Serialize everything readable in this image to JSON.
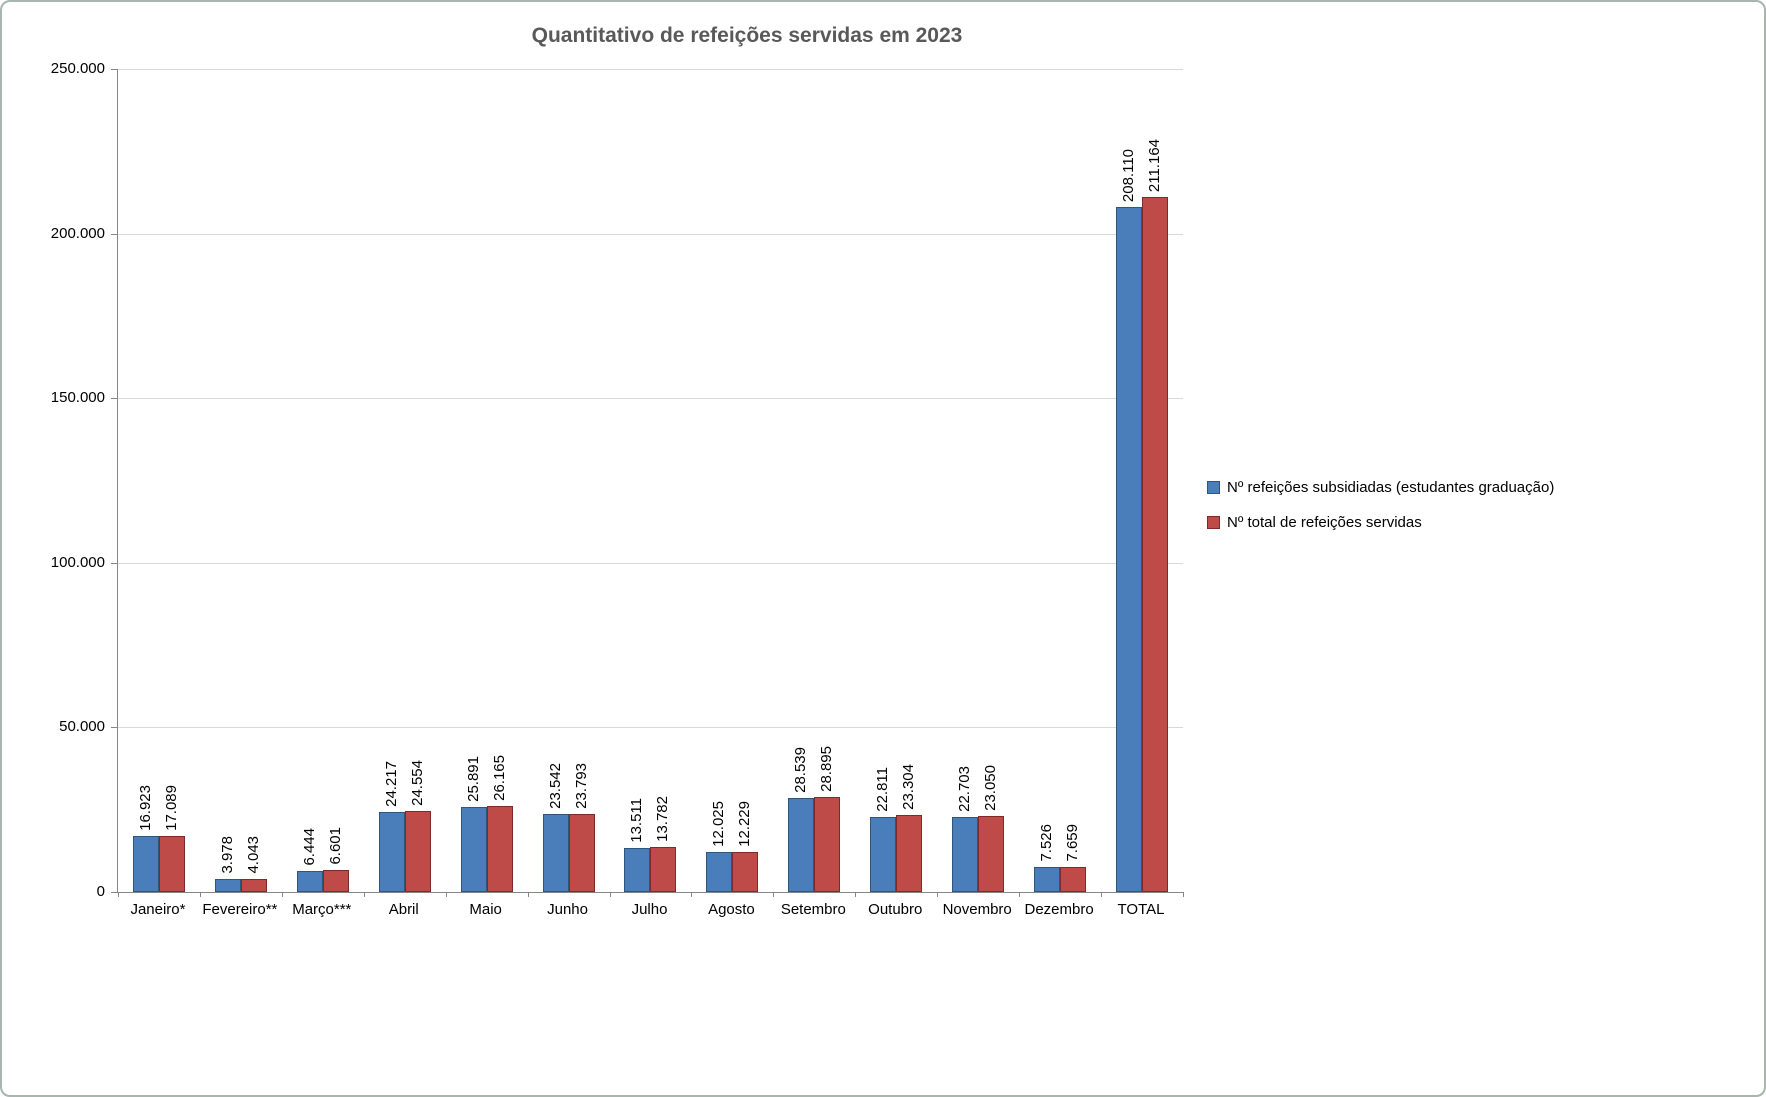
{
  "chart_data": {
    "type": "bar",
    "title": "Quantitativo de refeições servidas em 2023",
    "categories": [
      "Janeiro*",
      "Fevereiro**",
      "Março***",
      "Abril",
      "Maio",
      "Junho",
      "Julho",
      "Agosto",
      "Setembro",
      "Outubro",
      "Novembro",
      "Dezembro",
      "TOTAL"
    ],
    "series": [
      {
        "name": "Nº refeições subsidiadas (estudantes graduação)",
        "color": "#4A7EBB",
        "border_color": "#2F5578",
        "values": [
          16923,
          3978,
          6444,
          24217,
          25891,
          23542,
          13511,
          12025,
          28539,
          22811,
          22703,
          7526,
          208110
        ],
        "labels": [
          "16.923",
          "3.978",
          "6.444",
          "24.217",
          "25.891",
          "23.542",
          "13.511",
          "12.025",
          "28.539",
          "22.811",
          "22.703",
          "7.526",
          "208.110"
        ]
      },
      {
        "name": "Nº total de refeições servidas",
        "color": "#BE4B48",
        "border_color": "#7D2B28",
        "values": [
          17089,
          4043,
          6601,
          24554,
          26165,
          23793,
          13782,
          12229,
          28895,
          23304,
          23050,
          7659,
          211164
        ],
        "labels": [
          "17.089",
          "4.043",
          "6.601",
          "24.554",
          "26.165",
          "23.793",
          "13.782",
          "12.229",
          "28.895",
          "23.304",
          "23.050",
          "7.659",
          "211.164"
        ]
      }
    ],
    "ylim": [
      0,
      250000
    ],
    "ytick_step": 50000,
    "ytick_labels": [
      "0",
      "50.000",
      "100.000",
      "150.000",
      "200.000",
      "250.000"
    ],
    "grid": true,
    "legend_position": "right",
    "colors": {
      "title_text": "#595959",
      "gridline": "#D9D9D9",
      "axis": "#868686",
      "frame_border": "#A9B5AF",
      "label_text": "#000000"
    }
  }
}
